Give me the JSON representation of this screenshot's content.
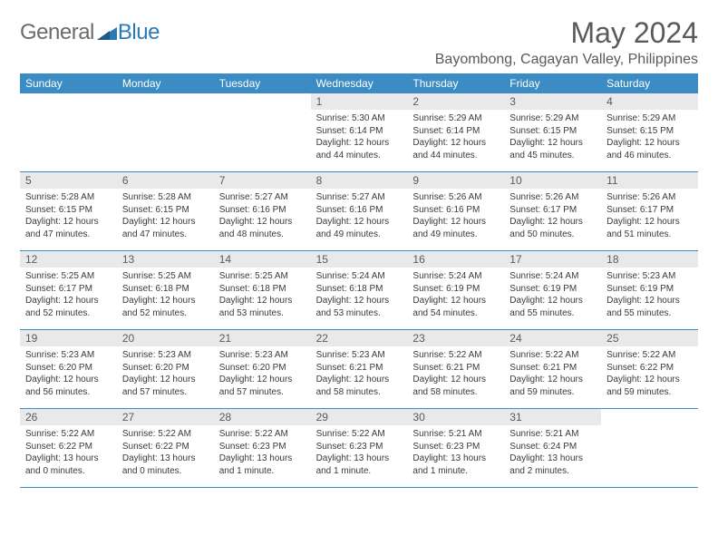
{
  "logo": {
    "text1": "General",
    "text2": "Blue"
  },
  "title": "May 2024",
  "location": "Bayombong, Cagayan Valley, Philippines",
  "colors": {
    "header_bg": "#3b8bc4",
    "header_text": "#ffffff",
    "daynum_bg": "#e9e9e9",
    "border": "#3b8bc4",
    "text_gray": "#5a5a5a",
    "logo_blue": "#2a7ab8"
  },
  "day_headers": [
    "Sunday",
    "Monday",
    "Tuesday",
    "Wednesday",
    "Thursday",
    "Friday",
    "Saturday"
  ],
  "weeks": [
    [
      {
        "num": "",
        "lines": []
      },
      {
        "num": "",
        "lines": []
      },
      {
        "num": "",
        "lines": []
      },
      {
        "num": "1",
        "lines": [
          "Sunrise: 5:30 AM",
          "Sunset: 6:14 PM",
          "Daylight: 12 hours",
          "and 44 minutes."
        ]
      },
      {
        "num": "2",
        "lines": [
          "Sunrise: 5:29 AM",
          "Sunset: 6:14 PM",
          "Daylight: 12 hours",
          "and 44 minutes."
        ]
      },
      {
        "num": "3",
        "lines": [
          "Sunrise: 5:29 AM",
          "Sunset: 6:15 PM",
          "Daylight: 12 hours",
          "and 45 minutes."
        ]
      },
      {
        "num": "4",
        "lines": [
          "Sunrise: 5:29 AM",
          "Sunset: 6:15 PM",
          "Daylight: 12 hours",
          "and 46 minutes."
        ]
      }
    ],
    [
      {
        "num": "5",
        "lines": [
          "Sunrise: 5:28 AM",
          "Sunset: 6:15 PM",
          "Daylight: 12 hours",
          "and 47 minutes."
        ]
      },
      {
        "num": "6",
        "lines": [
          "Sunrise: 5:28 AM",
          "Sunset: 6:15 PM",
          "Daylight: 12 hours",
          "and 47 minutes."
        ]
      },
      {
        "num": "7",
        "lines": [
          "Sunrise: 5:27 AM",
          "Sunset: 6:16 PM",
          "Daylight: 12 hours",
          "and 48 minutes."
        ]
      },
      {
        "num": "8",
        "lines": [
          "Sunrise: 5:27 AM",
          "Sunset: 6:16 PM",
          "Daylight: 12 hours",
          "and 49 minutes."
        ]
      },
      {
        "num": "9",
        "lines": [
          "Sunrise: 5:26 AM",
          "Sunset: 6:16 PM",
          "Daylight: 12 hours",
          "and 49 minutes."
        ]
      },
      {
        "num": "10",
        "lines": [
          "Sunrise: 5:26 AM",
          "Sunset: 6:17 PM",
          "Daylight: 12 hours",
          "and 50 minutes."
        ]
      },
      {
        "num": "11",
        "lines": [
          "Sunrise: 5:26 AM",
          "Sunset: 6:17 PM",
          "Daylight: 12 hours",
          "and 51 minutes."
        ]
      }
    ],
    [
      {
        "num": "12",
        "lines": [
          "Sunrise: 5:25 AM",
          "Sunset: 6:17 PM",
          "Daylight: 12 hours",
          "and 52 minutes."
        ]
      },
      {
        "num": "13",
        "lines": [
          "Sunrise: 5:25 AM",
          "Sunset: 6:18 PM",
          "Daylight: 12 hours",
          "and 52 minutes."
        ]
      },
      {
        "num": "14",
        "lines": [
          "Sunrise: 5:25 AM",
          "Sunset: 6:18 PM",
          "Daylight: 12 hours",
          "and 53 minutes."
        ]
      },
      {
        "num": "15",
        "lines": [
          "Sunrise: 5:24 AM",
          "Sunset: 6:18 PM",
          "Daylight: 12 hours",
          "and 53 minutes."
        ]
      },
      {
        "num": "16",
        "lines": [
          "Sunrise: 5:24 AM",
          "Sunset: 6:19 PM",
          "Daylight: 12 hours",
          "and 54 minutes."
        ]
      },
      {
        "num": "17",
        "lines": [
          "Sunrise: 5:24 AM",
          "Sunset: 6:19 PM",
          "Daylight: 12 hours",
          "and 55 minutes."
        ]
      },
      {
        "num": "18",
        "lines": [
          "Sunrise: 5:23 AM",
          "Sunset: 6:19 PM",
          "Daylight: 12 hours",
          "and 55 minutes."
        ]
      }
    ],
    [
      {
        "num": "19",
        "lines": [
          "Sunrise: 5:23 AM",
          "Sunset: 6:20 PM",
          "Daylight: 12 hours",
          "and 56 minutes."
        ]
      },
      {
        "num": "20",
        "lines": [
          "Sunrise: 5:23 AM",
          "Sunset: 6:20 PM",
          "Daylight: 12 hours",
          "and 57 minutes."
        ]
      },
      {
        "num": "21",
        "lines": [
          "Sunrise: 5:23 AM",
          "Sunset: 6:20 PM",
          "Daylight: 12 hours",
          "and 57 minutes."
        ]
      },
      {
        "num": "22",
        "lines": [
          "Sunrise: 5:23 AM",
          "Sunset: 6:21 PM",
          "Daylight: 12 hours",
          "and 58 minutes."
        ]
      },
      {
        "num": "23",
        "lines": [
          "Sunrise: 5:22 AM",
          "Sunset: 6:21 PM",
          "Daylight: 12 hours",
          "and 58 minutes."
        ]
      },
      {
        "num": "24",
        "lines": [
          "Sunrise: 5:22 AM",
          "Sunset: 6:21 PM",
          "Daylight: 12 hours",
          "and 59 minutes."
        ]
      },
      {
        "num": "25",
        "lines": [
          "Sunrise: 5:22 AM",
          "Sunset: 6:22 PM",
          "Daylight: 12 hours",
          "and 59 minutes."
        ]
      }
    ],
    [
      {
        "num": "26",
        "lines": [
          "Sunrise: 5:22 AM",
          "Sunset: 6:22 PM",
          "Daylight: 13 hours",
          "and 0 minutes."
        ]
      },
      {
        "num": "27",
        "lines": [
          "Sunrise: 5:22 AM",
          "Sunset: 6:22 PM",
          "Daylight: 13 hours",
          "and 0 minutes."
        ]
      },
      {
        "num": "28",
        "lines": [
          "Sunrise: 5:22 AM",
          "Sunset: 6:23 PM",
          "Daylight: 13 hours",
          "and 1 minute."
        ]
      },
      {
        "num": "29",
        "lines": [
          "Sunrise: 5:22 AM",
          "Sunset: 6:23 PM",
          "Daylight: 13 hours",
          "and 1 minute."
        ]
      },
      {
        "num": "30",
        "lines": [
          "Sunrise: 5:21 AM",
          "Sunset: 6:23 PM",
          "Daylight: 13 hours",
          "and 1 minute."
        ]
      },
      {
        "num": "31",
        "lines": [
          "Sunrise: 5:21 AM",
          "Sunset: 6:24 PM",
          "Daylight: 13 hours",
          "and 2 minutes."
        ]
      },
      {
        "num": "",
        "lines": []
      }
    ]
  ]
}
